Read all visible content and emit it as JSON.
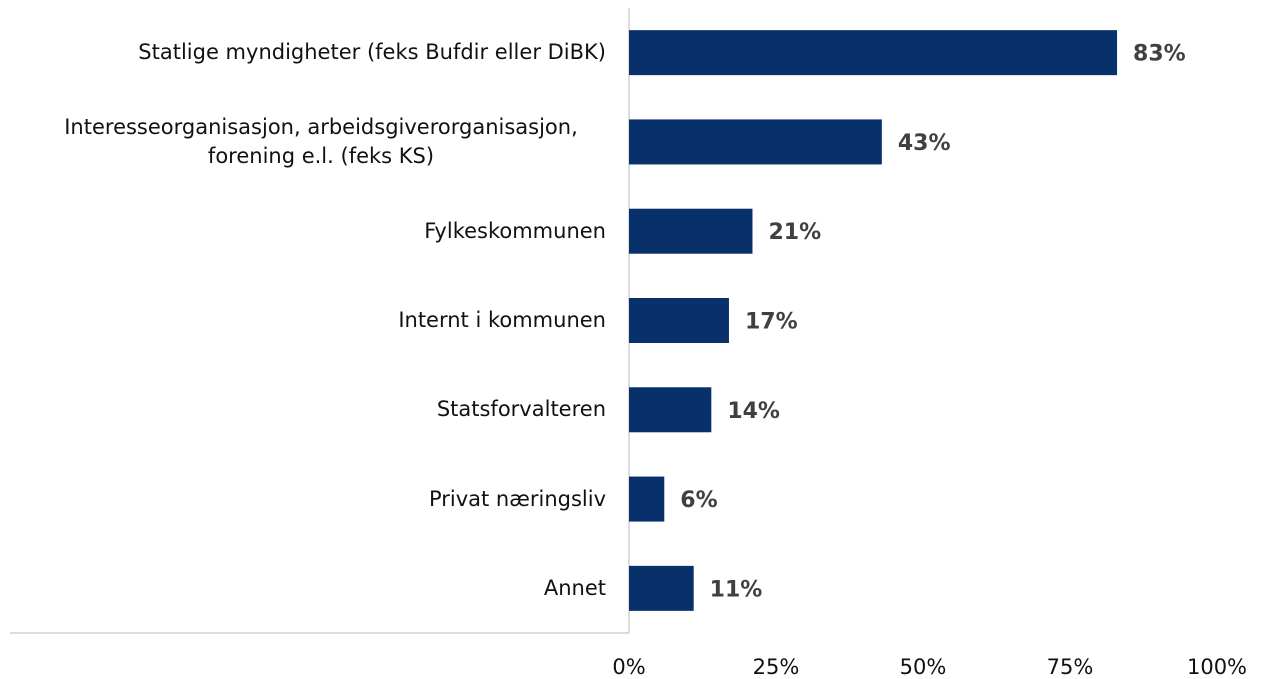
{
  "chart_data": {
    "type": "barh",
    "categories": [
      "Statlige myndigheter (feks Bufdir eller DiBK)",
      "Interesseorganisasjon, arbeidsgiverorganisasjon, forening e.l. (feks KS)",
      "Fylkeskommunen",
      "Internt i kommunen",
      "Statsforvalteren",
      "Privat næringsliv",
      "Annet"
    ],
    "values": [
      83,
      43,
      21,
      17,
      14,
      6,
      11
    ],
    "value_labels": [
      "83%",
      "43%",
      "21%",
      "17%",
      "14%",
      "6%",
      "11%"
    ],
    "color": "#08306b",
    "xlim": [
      0,
      100
    ],
    "xticks": [
      {
        "value": 0,
        "label": "0%"
      },
      {
        "value": 25,
        "label": "25%"
      },
      {
        "value": 50,
        "label": "50%"
      },
      {
        "value": 75,
        "label": "75%"
      },
      {
        "value": 100,
        "label": "100%"
      }
    ],
    "grid": false
  }
}
